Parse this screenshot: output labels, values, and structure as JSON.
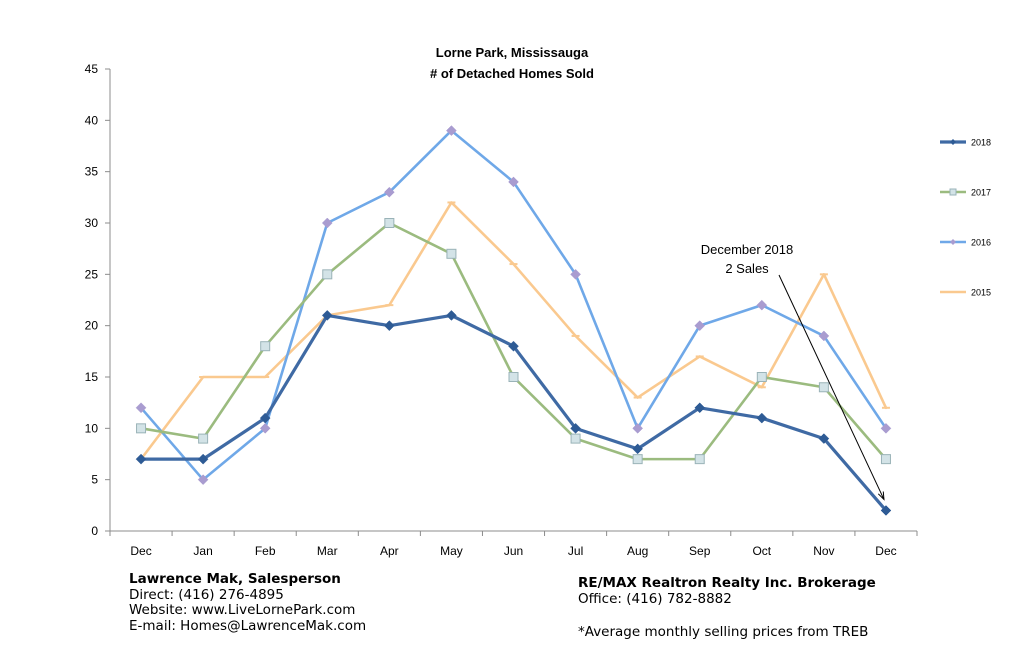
{
  "chart_data": {
    "type": "line",
    "title": "Lorne Park, Mississauga",
    "subtitle": "# of Detached Homes Sold",
    "categories": [
      "Dec",
      "Jan",
      "Feb",
      "Mar",
      "Apr",
      "May",
      "Jun",
      "Jul",
      "Aug",
      "Sep",
      "Oct",
      "Nov",
      "Dec"
    ],
    "ylim": [
      0,
      45
    ],
    "yticks": [
      0,
      5,
      10,
      15,
      20,
      25,
      30,
      35,
      40,
      45
    ],
    "grid": false,
    "legend_position": "right",
    "series": [
      {
        "name": "2018",
        "color": "#3f6aa4",
        "marker": "diamond",
        "values": [
          7,
          7,
          11,
          21,
          20,
          21,
          18,
          10,
          8,
          12,
          11,
          9,
          2
        ]
      },
      {
        "name": "2017",
        "color": "#9bbb7f",
        "marker": "square",
        "values": [
          10,
          9,
          18,
          25,
          30,
          27,
          15,
          9,
          7,
          7,
          15,
          14,
          7
        ]
      },
      {
        "name": "2016",
        "color": "#6fa8e8",
        "marker": "diamond-purple",
        "values": [
          12,
          5,
          10,
          30,
          33,
          39,
          34,
          25,
          10,
          20,
          22,
          19,
          10
        ]
      },
      {
        "name": "2015",
        "color": "#fac98f",
        "marker": "dash",
        "values": [
          7,
          15,
          15,
          21,
          22,
          32,
          26,
          19,
          13,
          17,
          14,
          25,
          12
        ]
      }
    ],
    "annotation": {
      "lines": [
        "December 2018",
        "2 Sales"
      ],
      "points_to_index": 12,
      "points_to_series": "2018"
    }
  },
  "footer": {
    "left": {
      "name": "Lawrence Mak, Salesperson",
      "direct": "Direct:  (416) 276-4895",
      "website": "Website:  www.LiveLornePark.com",
      "email": "E-mail:  Homes@LawrenceMak.com"
    },
    "right": {
      "brokerage": "RE/MAX Realtron Realty Inc. Brokerage",
      "office": "Office: (416) 782-8882",
      "note": "*Average monthly selling prices from TREB"
    }
  }
}
